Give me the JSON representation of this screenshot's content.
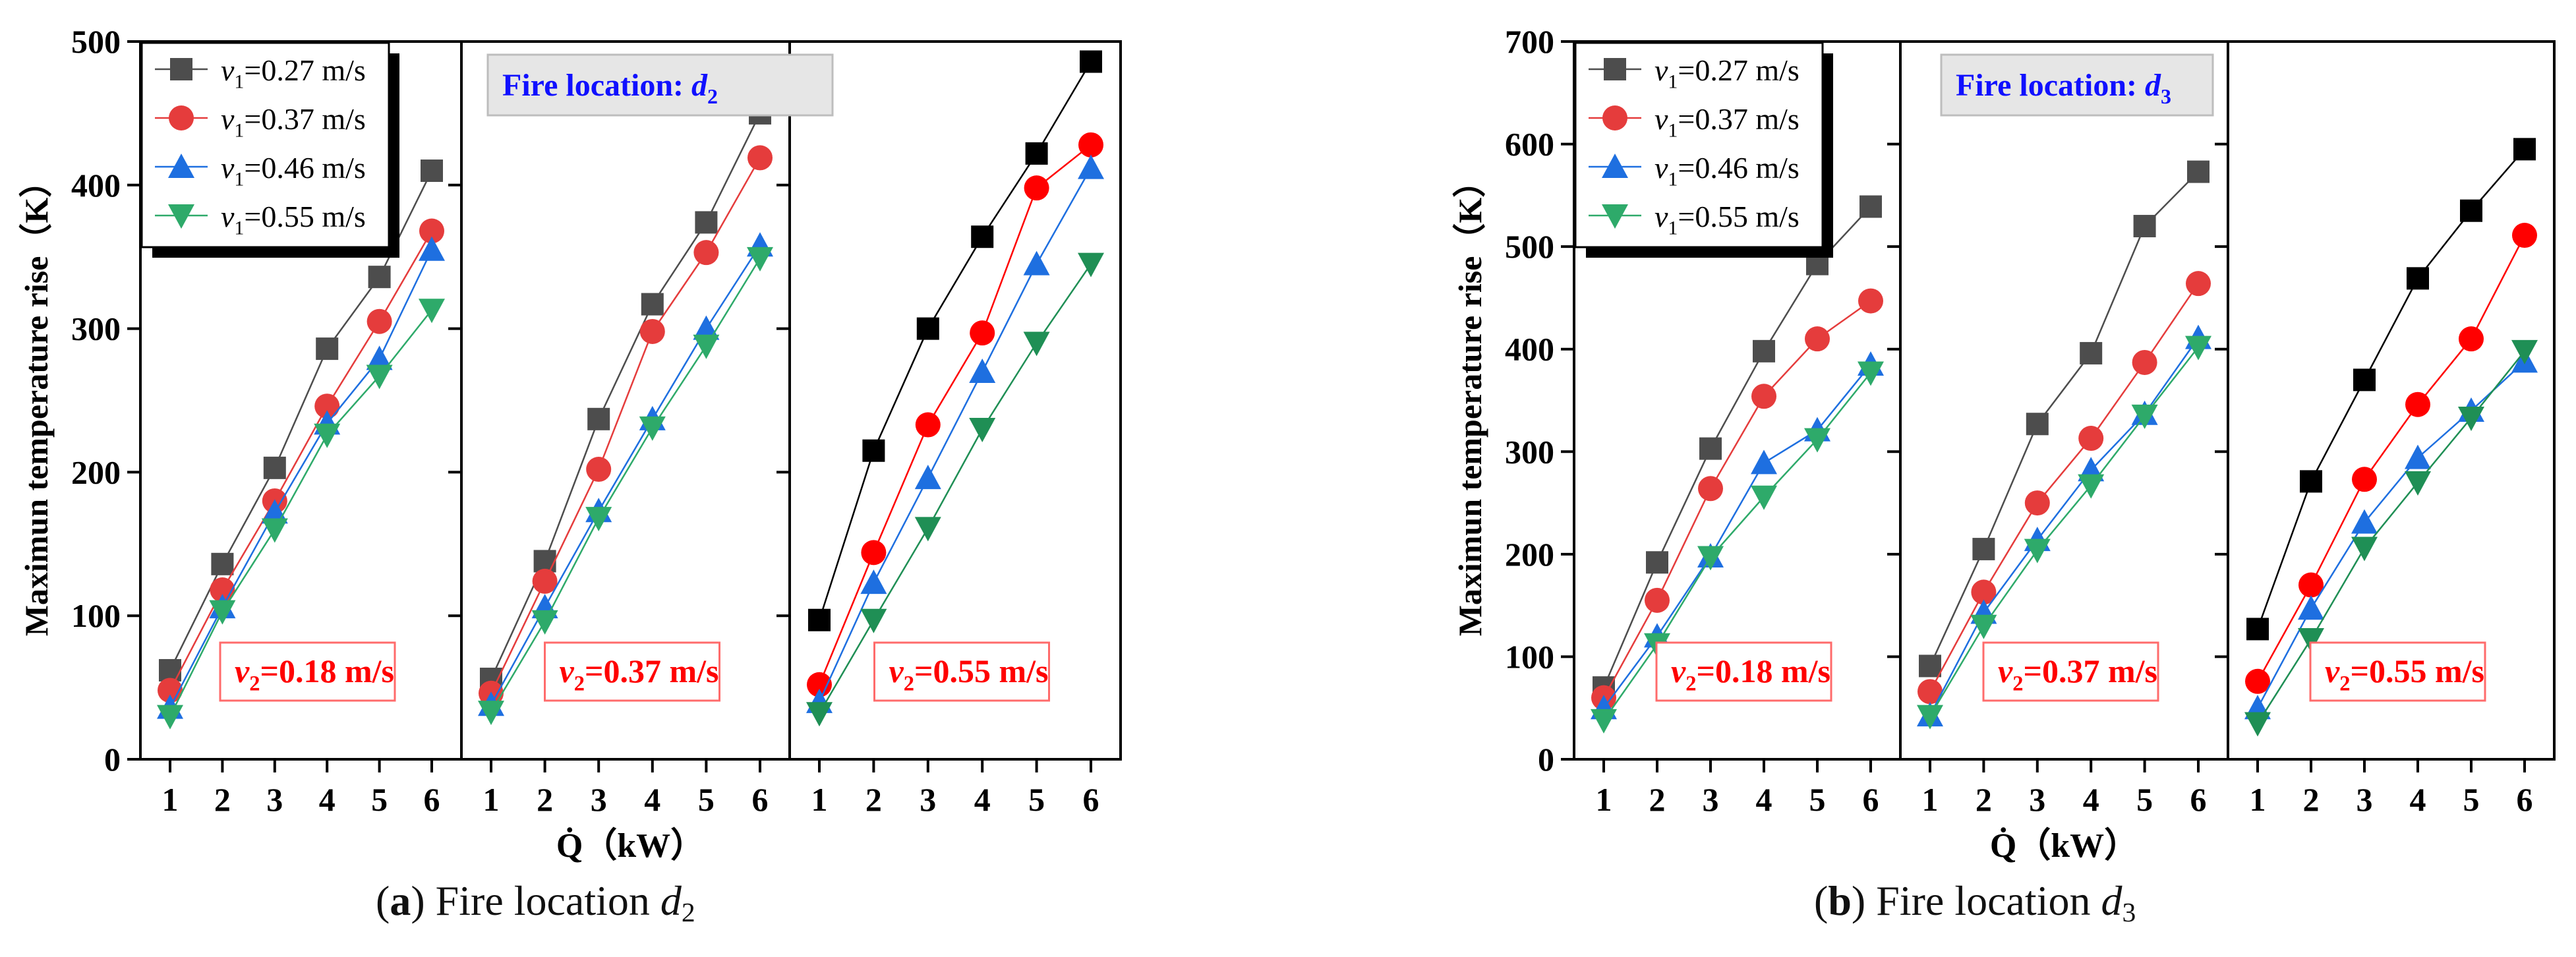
{
  "figure": {
    "captions": [
      {
        "letter": "a",
        "text": "Fire location ",
        "var": "d",
        "sub": "2"
      },
      {
        "letter": "b",
        "text": "Fire location ",
        "var": "d",
        "sub": "3"
      }
    ]
  },
  "legend": [
    {
      "label": "=0.27 m/s",
      "var": "v",
      "sub": "1",
      "marker": "square",
      "color_light": "#4d4d4d",
      "color_dark": "#000000"
    },
    {
      "label": "=0.37 m/s",
      "var": "v",
      "sub": "1",
      "marker": "circle",
      "color_light": "#e53c3c",
      "color_dark": "#ff0000"
    },
    {
      "label": "=0.46 m/s",
      "var": "v",
      "sub": "1",
      "marker": "triangle-up",
      "color_light": "#1e6fe0",
      "color_dark": "#1e6fe0"
    },
    {
      "label": "=0.55 m/s",
      "var": "v",
      "sub": "1",
      "marker": "triangle-down",
      "color_light": "#2eaa6a",
      "color_dark": "#1f8f55"
    }
  ],
  "chart_data": [
    {
      "type": "line",
      "id": "a",
      "ylabel": "Maximun temperature rise（K）",
      "xlabel": "Q̇（kW）",
      "ylim": [
        0,
        500
      ],
      "yticks": [
        0,
        100,
        200,
        300,
        400,
        500
      ],
      "x": [
        1,
        2,
        3,
        4,
        5,
        6
      ],
      "fire_location_label": {
        "text": "Fire location: ",
        "var": "d",
        "sub": "2"
      },
      "panels": [
        {
          "label": "=0.18 m/s",
          "var": "v",
          "sub": "2",
          "series": [
            {
              "name": "v1=0.27 m/s",
              "values": [
                62,
                136,
                203,
                286,
                336,
                410
              ]
            },
            {
              "name": "v1=0.37 m/s",
              "values": [
                48,
                118,
                180,
                246,
                305,
                368
              ]
            },
            {
              "name": "v1=0.46 m/s",
              "values": [
                36,
                106,
                172,
                234,
                279,
                355
              ]
            },
            {
              "name": "v1=0.55 m/s",
              "values": [
                30,
                103,
                160,
                226,
                267,
                313
              ]
            }
          ]
        },
        {
          "label": "=0.37 m/s",
          "var": "v",
          "sub": "2",
          "series": [
            {
              "name": "v1=0.27 m/s",
              "values": [
                56,
                138,
                237,
                317,
                374,
                450
              ]
            },
            {
              "name": "v1=0.37 m/s",
              "values": [
                46,
                124,
                202,
                298,
                353,
                419
              ]
            },
            {
              "name": "v1=0.46 m/s",
              "values": [
                38,
                106,
                173,
                237,
                300,
                358
              ]
            },
            {
              "name": "v1=0.55 m/s",
              "values": [
                33,
                96,
                168,
                231,
                288,
                349
              ]
            }
          ]
        },
        {
          "label": "=0.55 m/s",
          "var": "v",
          "sub": "2",
          "series": [
            {
              "name": "v1=0.27 m/s",
              "values": [
                97,
                215,
                300,
                364,
                422,
                486
              ]
            },
            {
              "name": "v1=0.37 m/s",
              "values": [
                52,
                144,
                233,
                297,
                398,
                428
              ]
            },
            {
              "name": "v1=0.46 m/s",
              "values": [
                40,
                123,
                196,
                270,
                345,
                412
              ]
            },
            {
              "name": "v1=0.55 m/s",
              "values": [
                32,
                97,
                161,
                230,
                290,
                345
              ]
            }
          ]
        }
      ]
    },
    {
      "type": "line",
      "id": "b",
      "ylabel": "Maximun temperature rise（K）",
      "xlabel": "Q̇（kW）",
      "ylim": [
        0,
        700
      ],
      "yticks": [
        0,
        100,
        200,
        300,
        400,
        500,
        600,
        700
      ],
      "x": [
        1,
        2,
        3,
        4,
        5,
        6
      ],
      "fire_location_label": {
        "text": "Fire location: ",
        "var": "d",
        "sub": "3"
      },
      "panels": [
        {
          "label": "=0.18 m/s",
          "var": "v",
          "sub": "2",
          "series": [
            {
              "name": "v1=0.27 m/s",
              "values": [
                70,
                192,
                303,
                398,
                483,
                539
              ]
            },
            {
              "name": "v1=0.37 m/s",
              "values": [
                60,
                155,
                264,
                354,
                410,
                447
              ]
            },
            {
              "name": "v1=0.46 m/s",
              "values": [
                50,
                120,
                198,
                289,
                321,
                385
              ]
            },
            {
              "name": "v1=0.55 m/s",
              "values": [
                38,
                112,
                197,
                256,
                312,
                377
              ]
            }
          ]
        },
        {
          "label": "=0.37 m/s",
          "var": "v",
          "sub": "2",
          "series": [
            {
              "name": "v1=0.27 m/s",
              "values": [
                91,
                205,
                327,
                396,
                520,
                573
              ]
            },
            {
              "name": "v1=0.37 m/s",
              "values": [
                66,
                163,
                250,
                313,
                387,
                464
              ]
            },
            {
              "name": "v1=0.46 m/s",
              "values": [
                43,
                143,
                214,
                282,
                337,
                411
              ]
            },
            {
              "name": "v1=0.55 m/s",
              "values": [
                42,
                130,
                204,
                267,
                335,
                402
              ]
            }
          ]
        },
        {
          "label": "=0.55 m/s",
          "var": "v",
          "sub": "2",
          "series": [
            {
              "name": "v1=0.27 m/s",
              "values": [
                127,
                271,
                370,
                469,
                535,
                595
              ]
            },
            {
              "name": "v1=0.37 m/s",
              "values": [
                76,
                170,
                273,
                346,
                410,
                511
              ]
            },
            {
              "name": "v1=0.46 m/s",
              "values": [
                50,
                147,
                231,
                294,
                340,
                388
              ]
            },
            {
              "name": "v1=0.55 m/s",
              "values": [
                35,
                117,
                206,
                270,
                333,
                398
              ]
            }
          ]
        }
      ]
    }
  ]
}
